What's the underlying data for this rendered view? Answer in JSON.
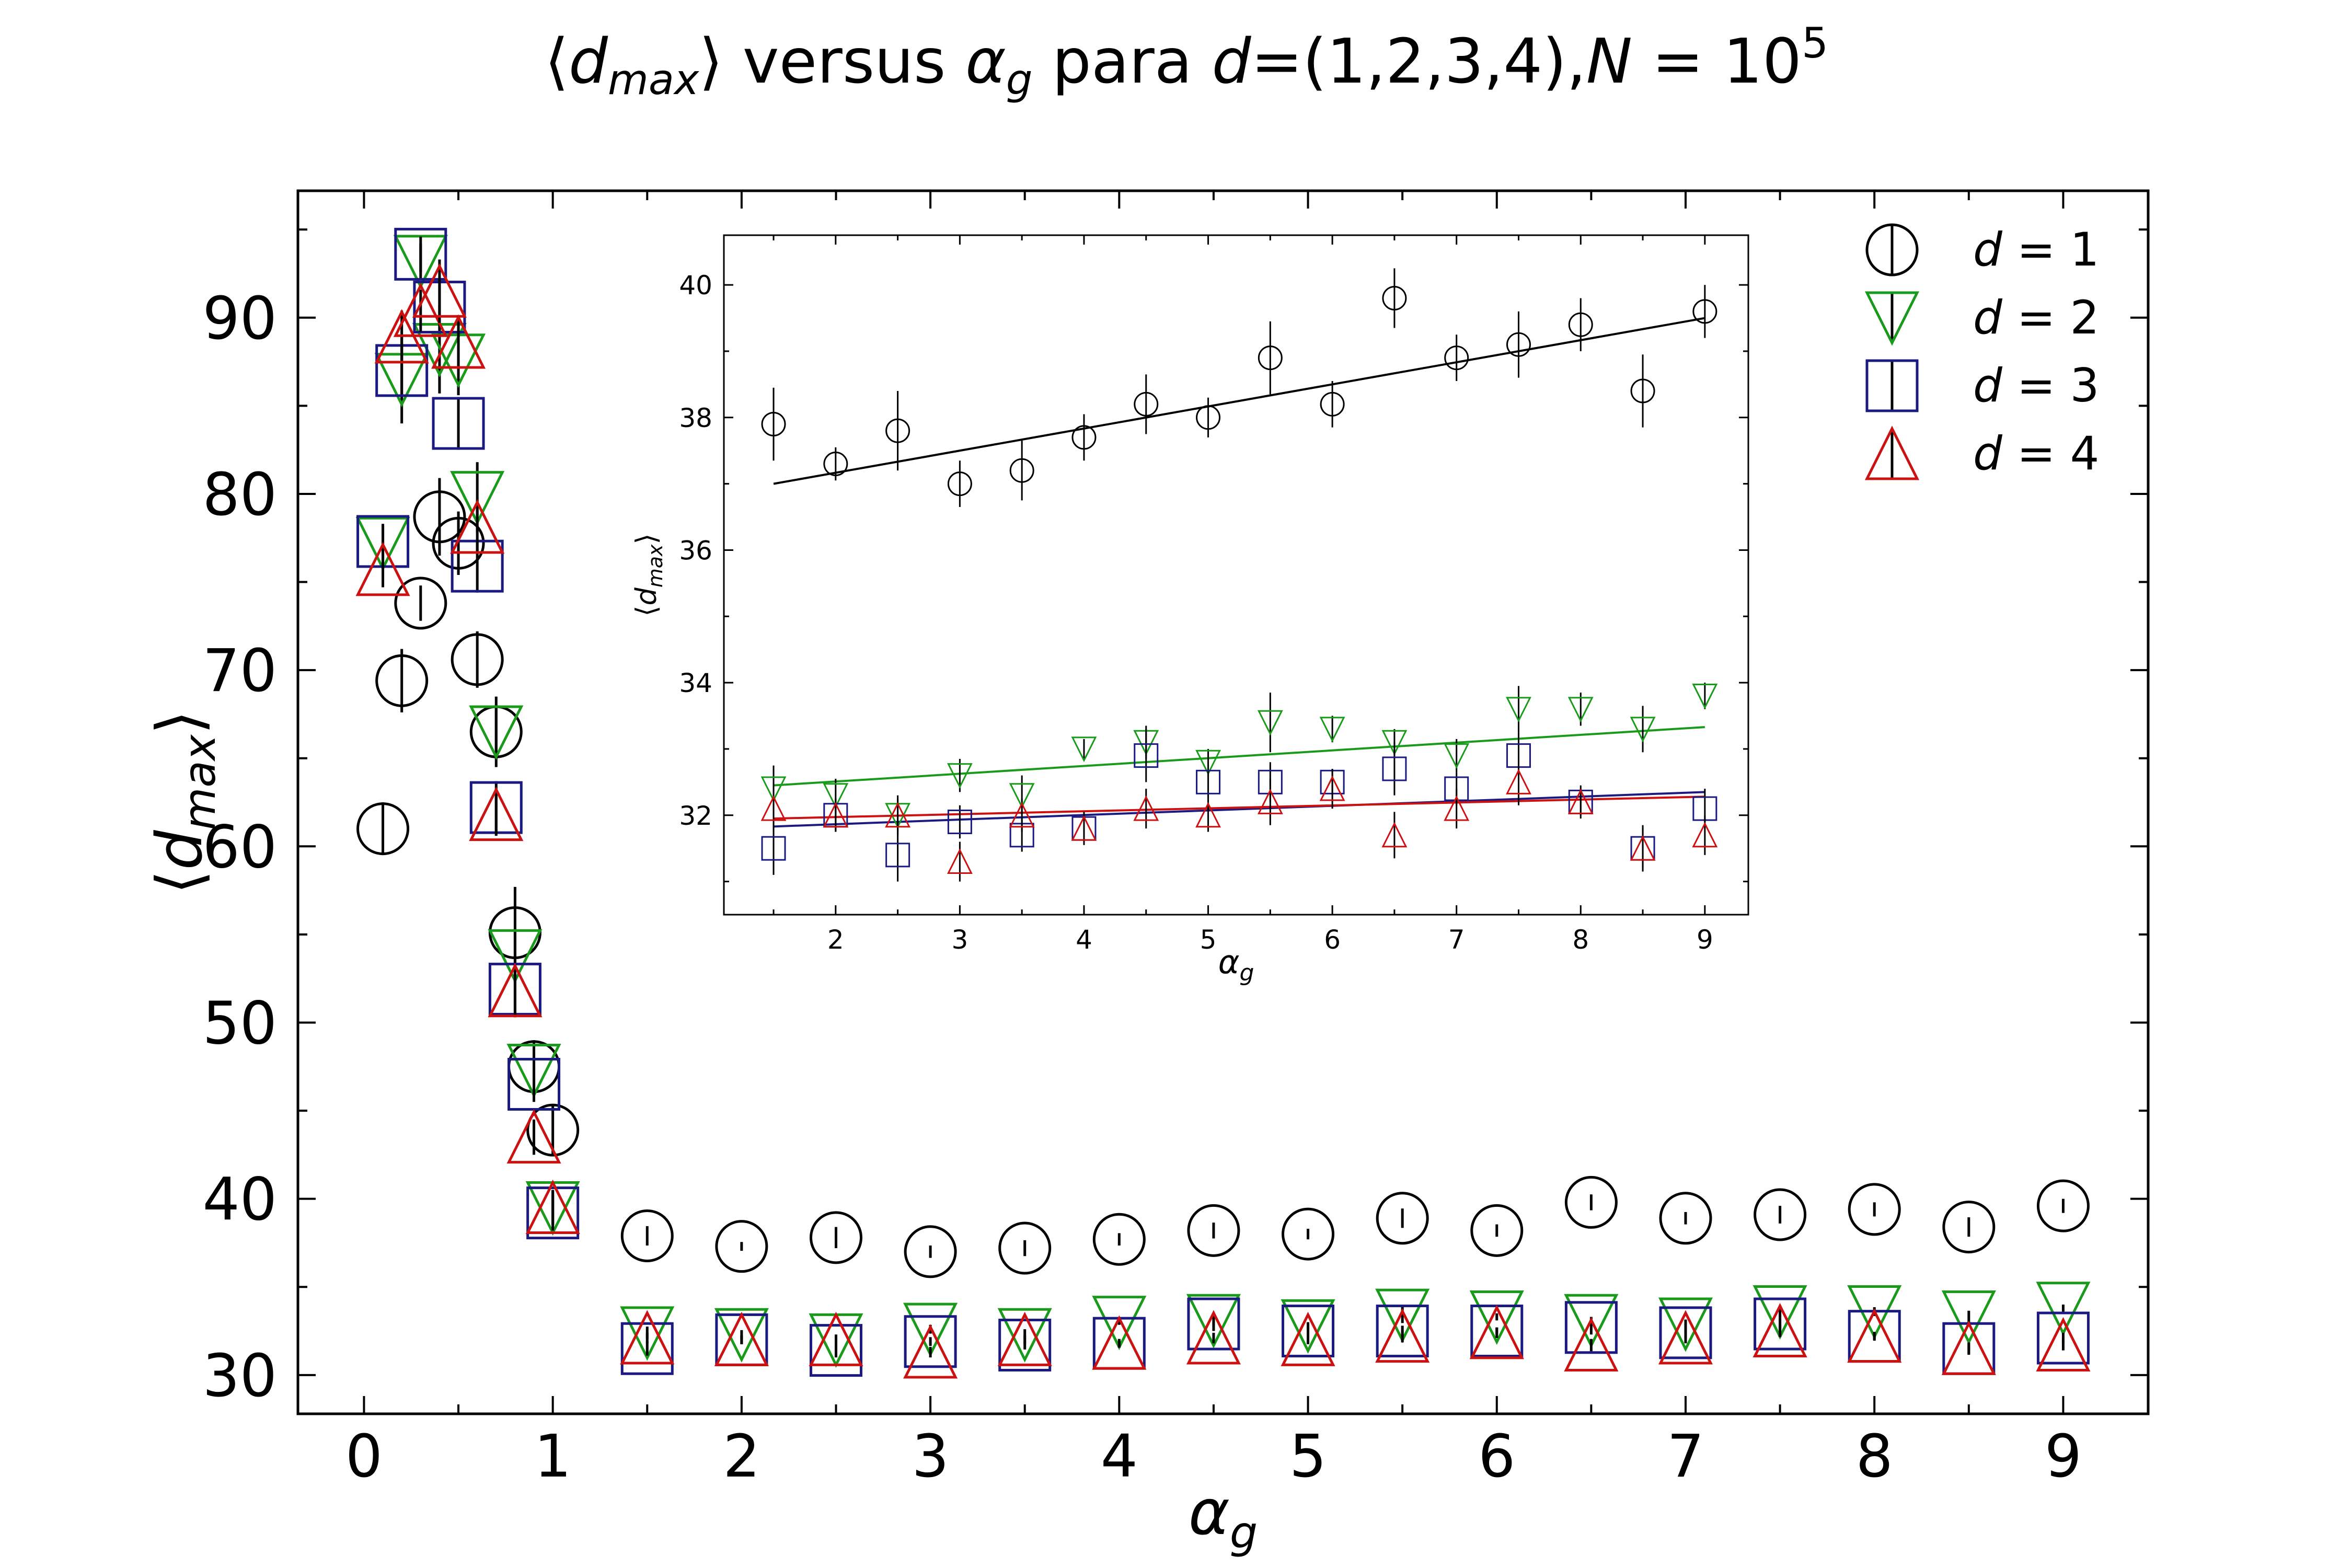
{
  "chart_data": {
    "type": "scatter",
    "title": {
      "prefix": "⟨",
      "var_main": "d",
      "var_sub": "max",
      "mid": "⟩ versus ",
      "alpha": "α",
      "alpha_sub": "g",
      "para": " para ",
      "d_var": "d",
      "d_vals": "=(1,2,3,4),",
      "n_var": "N",
      "n_eq": " = 10",
      "n_exp": "5"
    },
    "xlabel": {
      "main": "α",
      "sub": "g"
    },
    "ylabel": {
      "open": "⟨",
      "main": "d",
      "sub": "max",
      "close": "⟩"
    },
    "xlim": [
      -0.35,
      9.45
    ],
    "ylim": [
      27.8,
      97.2
    ],
    "xticks": [
      0,
      1,
      2,
      3,
      4,
      5,
      6,
      7,
      8,
      9
    ],
    "yticks": [
      30,
      40,
      50,
      60,
      70,
      80,
      90
    ],
    "legend": {
      "placement": "top-right",
      "entries": [
        {
          "marker": "circle",
          "color": "#000000",
          "label": "d = 1"
        },
        {
          "marker": "triangle-down",
          "color": "#1a9a1a",
          "label": "d = 2"
        },
        {
          "marker": "square",
          "color": "#1a1a80",
          "label": "d = 3"
        },
        {
          "marker": "triangle-up",
          "color": "#cc1111",
          "label": "d = 4"
        }
      ]
    },
    "series": [
      {
        "name": "d = 1",
        "marker": "circle",
        "color": "#000000",
        "x": [
          0.1,
          0.2,
          0.3,
          0.4,
          0.5,
          0.6,
          0.7,
          0.8,
          0.9,
          1.0,
          1.5,
          2,
          2.5,
          3,
          3.5,
          4,
          4.5,
          5,
          5.5,
          6,
          6.5,
          7,
          7.5,
          8,
          8.5,
          9
        ],
        "y": [
          61.0,
          69.4,
          73.8,
          78.7,
          77.2,
          70.6,
          66.5,
          55.1,
          47.5,
          43.9,
          37.9,
          37.3,
          37.8,
          37.0,
          37.2,
          37.7,
          38.2,
          38.0,
          38.9,
          38.2,
          39.8,
          38.9,
          39.1,
          39.4,
          38.4,
          39.6
        ],
        "err": [
          1.5,
          1.8,
          1.0,
          2.2,
          1.8,
          1.6,
          2.0,
          2.6,
          1.5,
          1.4,
          0.55,
          0.25,
          0.6,
          0.35,
          0.45,
          0.35,
          0.45,
          0.3,
          0.55,
          0.35,
          0.45,
          0.35,
          0.5,
          0.4,
          0.55,
          0.4
        ]
      },
      {
        "name": "d = 2",
        "marker": "triangle-down",
        "color": "#1a9a1a",
        "x": [
          0.1,
          0.2,
          0.3,
          0.4,
          0.5,
          0.6,
          0.7,
          0.8,
          0.9,
          1.0,
          1.5,
          2,
          2.5,
          3,
          3.5,
          4,
          4.5,
          5,
          5.5,
          6,
          6.5,
          7,
          7.5,
          8,
          8.5,
          9
        ],
        "y": [
          77.2,
          86.5,
          93.2,
          88.2,
          87.6,
          79.8,
          66.5,
          53.8,
          47.3,
          39.5,
          32.4,
          32.3,
          32.0,
          32.6,
          32.3,
          33.0,
          33.1,
          32.8,
          33.4,
          33.3,
          33.1,
          32.9,
          33.6,
          33.6,
          33.3,
          33.8
        ],
        "err": [
          1.0,
          2.5,
          1.0,
          2.5,
          2.0,
          2.0,
          1.5,
          1.5,
          1.0,
          1.0,
          0.35,
          0.25,
          0.25,
          0.25,
          0.3,
          0.15,
          0.25,
          0.2,
          0.45,
          0.2,
          0.2,
          0.25,
          0.35,
          0.25,
          0.35,
          0.2
        ]
      },
      {
        "name": "d = 3",
        "marker": "square",
        "color": "#1a1a80",
        "x": [
          0.1,
          0.2,
          0.3,
          0.4,
          0.5,
          0.6,
          0.7,
          0.8,
          0.9,
          1.0,
          1.5,
          2,
          2.5,
          3,
          3.5,
          4,
          4.5,
          5,
          5.5,
          6,
          6.5,
          7,
          7.5,
          8,
          8.5,
          9
        ],
        "y": [
          77.3,
          87.0,
          93.6,
          90.6,
          84.0,
          75.9,
          62.2,
          51.9,
          46.5,
          39.2,
          31.5,
          32.0,
          31.4,
          31.9,
          31.7,
          31.8,
          32.9,
          32.5,
          32.5,
          32.5,
          32.7,
          32.4,
          32.9,
          32.2,
          31.5,
          32.1
        ],
        "err": [
          1.0,
          1.5,
          1.0,
          1.5,
          1.5,
          1.5,
          1.5,
          1.5,
          1.0,
          1.0,
          0.4,
          0.25,
          0.4,
          0.25,
          0.25,
          0.2,
          0.4,
          0.25,
          0.3,
          0.2,
          0.4,
          0.25,
          0.35,
          0.2,
          0.35,
          0.3
        ]
      },
      {
        "name": "d = 4",
        "marker": "triangle-up",
        "color": "#cc1111",
        "x": [
          0.1,
          0.2,
          0.3,
          0.4,
          0.5,
          0.6,
          0.7,
          0.8,
          0.9,
          1.0,
          1.5,
          2,
          2.5,
          3,
          3.5,
          4,
          4.5,
          5,
          5.5,
          6,
          6.5,
          7,
          7.5,
          8,
          8.5,
          9
        ],
        "y": [
          75.7,
          88.9,
          90.4,
          91.5,
          88.6,
          78.1,
          61.8,
          51.8,
          43.5,
          39.5,
          32.1,
          32.0,
          32.0,
          31.3,
          32.0,
          31.8,
          32.1,
          32.0,
          32.2,
          32.4,
          31.7,
          32.1,
          32.5,
          32.2,
          31.5,
          31.7
        ],
        "err": [
          1.0,
          1.5,
          1.2,
          1.8,
          1.5,
          1.5,
          1.2,
          1.5,
          1.0,
          1.0,
          0.3,
          0.25,
          0.3,
          0.3,
          0.25,
          0.25,
          0.3,
          0.25,
          0.35,
          0.3,
          0.35,
          0.3,
          0.35,
          0.25,
          0.3,
          0.3
        ]
      }
    ],
    "inset": {
      "type": "scatter",
      "xlabel": {
        "main": "α",
        "sub": "g"
      },
      "ylabel": {
        "open": "⟨",
        "main": "d",
        "sub": "max",
        "close": "⟩"
      },
      "xlim": [
        1.1,
        9.35
      ],
      "ylim": [
        30.5,
        40.75
      ],
      "xticks": [
        2,
        3,
        4,
        5,
        6,
        7,
        8,
        9
      ],
      "yticks": [
        32,
        34,
        36,
        38,
        40
      ],
      "x": [
        1.5,
        2,
        2.5,
        3,
        3.5,
        4,
        4.5,
        5,
        5.5,
        6,
        6.5,
        7,
        7.5,
        8,
        8.5,
        9
      ],
      "fit_lines": [
        {
          "color": "#000000",
          "x": [
            1.5,
            9
          ],
          "y": [
            37.0,
            39.5
          ]
        },
        {
          "color": "#1a9a1a",
          "x": [
            1.5,
            9
          ],
          "y": [
            32.45,
            33.33
          ]
        },
        {
          "color": "#1a1a80",
          "x": [
            1.5,
            9
          ],
          "y": [
            31.83,
            32.35
          ]
        },
        {
          "color": "#cc1111",
          "x": [
            1.5,
            9
          ],
          "y": [
            31.95,
            32.28
          ]
        }
      ]
    }
  }
}
